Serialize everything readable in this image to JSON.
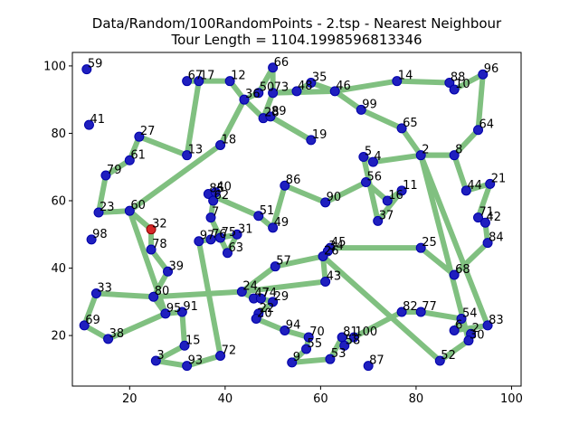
{
  "chart_data": {
    "type": "line",
    "title": "Data/Random/100RandomPoints - 2.tsp - Nearest Neighbour",
    "subtitle": "Tour Length = 1104.1998596813346",
    "xlim": [
      8,
      102
    ],
    "ylim": [
      5,
      104
    ],
    "xticks": [
      20,
      40,
      60,
      80,
      100
    ],
    "yticks": [
      20,
      40,
      60,
      80,
      100
    ],
    "grid": false,
    "colors": {
      "route": "#80c080",
      "point": "#1f1fbf",
      "point_edge": "#0000aa",
      "start": "#d62728"
    },
    "start_id": 32,
    "points": [
      {
        "id": 59,
        "x": 11,
        "y": 99
      },
      {
        "id": 41,
        "x": 11.5,
        "y": 82.5
      },
      {
        "id": 27,
        "x": 22,
        "y": 79
      },
      {
        "id": 61,
        "x": 20,
        "y": 72
      },
      {
        "id": 79,
        "x": 15,
        "y": 67.5
      },
      {
        "id": 13,
        "x": 32,
        "y": 73.5
      },
      {
        "id": 18,
        "x": 39,
        "y": 76.5
      },
      {
        "id": 67,
        "x": 32,
        "y": 95.5
      },
      {
        "id": 17,
        "x": 34.5,
        "y": 95.5
      },
      {
        "id": 12,
        "x": 41,
        "y": 95.5
      },
      {
        "id": 36,
        "x": 44,
        "y": 90
      },
      {
        "id": 50,
        "x": 47,
        "y": 92
      },
      {
        "id": 66,
        "x": 50,
        "y": 99.5
      },
      {
        "id": 73,
        "x": 50,
        "y": 92
      },
      {
        "id": 48,
        "x": 55,
        "y": 92.5
      },
      {
        "id": 35,
        "x": 58,
        "y": 95
      },
      {
        "id": 46,
        "x": 63,
        "y": 92.5
      },
      {
        "id": 14,
        "x": 76,
        "y": 95.5
      },
      {
        "id": 88,
        "x": 87,
        "y": 95
      },
      {
        "id": 10,
        "x": 88,
        "y": 93
      },
      {
        "id": 96,
        "x": 94,
        "y": 97.5
      },
      {
        "id": 99,
        "x": 68.5,
        "y": 87
      },
      {
        "id": 65,
        "x": 77,
        "y": 81.5
      },
      {
        "id": 64,
        "x": 93,
        "y": 81
      },
      {
        "id": 28,
        "x": 48,
        "y": 84.5
      },
      {
        "id": 89,
        "x": 49.5,
        "y": 85
      },
      {
        "id": 19,
        "x": 58,
        "y": 78
      },
      {
        "id": 5,
        "x": 69,
        "y": 73
      },
      {
        "id": 4,
        "x": 71,
        "y": 71.5
      },
      {
        "id": 2,
        "x": 81,
        "y": 73.5
      },
      {
        "id": 8,
        "x": 88,
        "y": 73.5
      },
      {
        "id": 44,
        "x": 90.5,
        "y": 63
      },
      {
        "id": 21,
        "x": 95.5,
        "y": 65
      },
      {
        "id": 71,
        "x": 93,
        "y": 55
      },
      {
        "id": 42,
        "x": 94.5,
        "y": 53.5
      },
      {
        "id": 84,
        "x": 95,
        "y": 47.5
      },
      {
        "id": 56,
        "x": 69.5,
        "y": 65.5
      },
      {
        "id": 16,
        "x": 74,
        "y": 60
      },
      {
        "id": 11,
        "x": 77,
        "y": 63
      },
      {
        "id": 37,
        "x": 72,
        "y": 54
      },
      {
        "id": 86,
        "x": 52.5,
        "y": 64.5
      },
      {
        "id": 90,
        "x": 61,
        "y": 59.5
      },
      {
        "id": 85,
        "x": 36.5,
        "y": 62
      },
      {
        "id": 40,
        "x": 38,
        "y": 62.5
      },
      {
        "id": 62,
        "x": 37.5,
        "y": 60
      },
      {
        "id": 51,
        "x": 47,
        "y": 55.5
      },
      {
        "id": 49,
        "x": 50,
        "y": 52
      },
      {
        "id": 7,
        "x": 37,
        "y": 55
      },
      {
        "id": 31,
        "x": 42.5,
        "y": 50
      },
      {
        "id": 75,
        "x": 39,
        "y": 49
      },
      {
        "id": 76,
        "x": 37,
        "y": 48.5
      },
      {
        "id": 97,
        "x": 34.5,
        "y": 48
      },
      {
        "id": 63,
        "x": 40.5,
        "y": 44.5
      },
      {
        "id": 60,
        "x": 20,
        "y": 57
      },
      {
        "id": 23,
        "x": 13.5,
        "y": 56.5
      },
      {
        "id": 98,
        "x": 12,
        "y": 48.5
      },
      {
        "id": 32,
        "x": 24.5,
        "y": 51.5
      },
      {
        "id": 78,
        "x": 24.5,
        "y": 45.5
      },
      {
        "id": 39,
        "x": 28,
        "y": 39
      },
      {
        "id": 80,
        "x": 25,
        "y": 31.5
      },
      {
        "id": 33,
        "x": 13,
        "y": 32.5
      },
      {
        "id": 69,
        "x": 10.5,
        "y": 23
      },
      {
        "id": 38,
        "x": 15.5,
        "y": 19
      },
      {
        "id": 95,
        "x": 27.5,
        "y": 26.5
      },
      {
        "id": 91,
        "x": 31,
        "y": 27
      },
      {
        "id": 15,
        "x": 31.5,
        "y": 17
      },
      {
        "id": 3,
        "x": 25.5,
        "y": 12.5
      },
      {
        "id": 93,
        "x": 32,
        "y": 11
      },
      {
        "id": 72,
        "x": 39,
        "y": 14
      },
      {
        "id": 45,
        "x": 62,
        "y": 46
      },
      {
        "id": 34,
        "x": 61.5,
        "y": 45
      },
      {
        "id": 26,
        "x": 60.5,
        "y": 43.5
      },
      {
        "id": 57,
        "x": 50.5,
        "y": 40.5
      },
      {
        "id": 25,
        "x": 81,
        "y": 46
      },
      {
        "id": 68,
        "x": 88,
        "y": 38
      },
      {
        "id": 43,
        "x": 61,
        "y": 36
      },
      {
        "id": 24,
        "x": 43.5,
        "y": 33
      },
      {
        "id": 47,
        "x": 46,
        "y": 31
      },
      {
        "id": 74,
        "x": 47.5,
        "y": 31
      },
      {
        "id": 29,
        "x": 50,
        "y": 30
      },
      {
        "id": 22,
        "x": 47,
        "y": 26.5
      },
      {
        "id": 20,
        "x": 46.5,
        "y": 25
      },
      {
        "id": 94,
        "x": 52.5,
        "y": 21.5
      },
      {
        "id": 70,
        "x": 57.5,
        "y": 19.5
      },
      {
        "id": 55,
        "x": 57,
        "y": 16
      },
      {
        "id": 9,
        "x": 54,
        "y": 12
      },
      {
        "id": 53,
        "x": 62,
        "y": 13
      },
      {
        "id": 81,
        "x": 64.5,
        "y": 19.5
      },
      {
        "id": 58,
        "x": 65,
        "y": 17
      },
      {
        "id": 100,
        "x": 67,
        "y": 19.5
      },
      {
        "id": 87,
        "x": 70,
        "y": 11
      },
      {
        "id": 82,
        "x": 77,
        "y": 27
      },
      {
        "id": 77,
        "x": 81,
        "y": 27
      },
      {
        "id": 54,
        "x": 89.5,
        "y": 25
      },
      {
        "id": 6,
        "x": 88,
        "y": 21.5
      },
      {
        "id": 83,
        "x": 95,
        "y": 23
      },
      {
        "id": 2,
        "x": 91.5,
        "y": 20.5
      },
      {
        "id": 30,
        "x": 91,
        "y": 18.5
      },
      {
        "id": 52,
        "x": 85,
        "y": 12.5
      }
    ],
    "tour": [
      32,
      78,
      39,
      80,
      33,
      69,
      38,
      95,
      91,
      15,
      3,
      93,
      72,
      97,
      76,
      75,
      31,
      63,
      7,
      62,
      40,
      85,
      51,
      49,
      86,
      90,
      56,
      16,
      11,
      37,
      5,
      4,
      2,
      8,
      44,
      21,
      71,
      42,
      84,
      68,
      25,
      45,
      34,
      26,
      57,
      24,
      47,
      74,
      29,
      22,
      20,
      94,
      70,
      55,
      9,
      53,
      81,
      58,
      100,
      82,
      77,
      54,
      6,
      83,
      2,
      30,
      52,
      26,
      43,
      24,
      80,
      95,
      60,
      23,
      79,
      61,
      27,
      13,
      17,
      67,
      12,
      36,
      50,
      66,
      73,
      48,
      35,
      46,
      14,
      88,
      10,
      96,
      64,
      8,
      2,
      65,
      99,
      46,
      73,
      28,
      89,
      19,
      89,
      28,
      36,
      18,
      60,
      32
    ]
  }
}
